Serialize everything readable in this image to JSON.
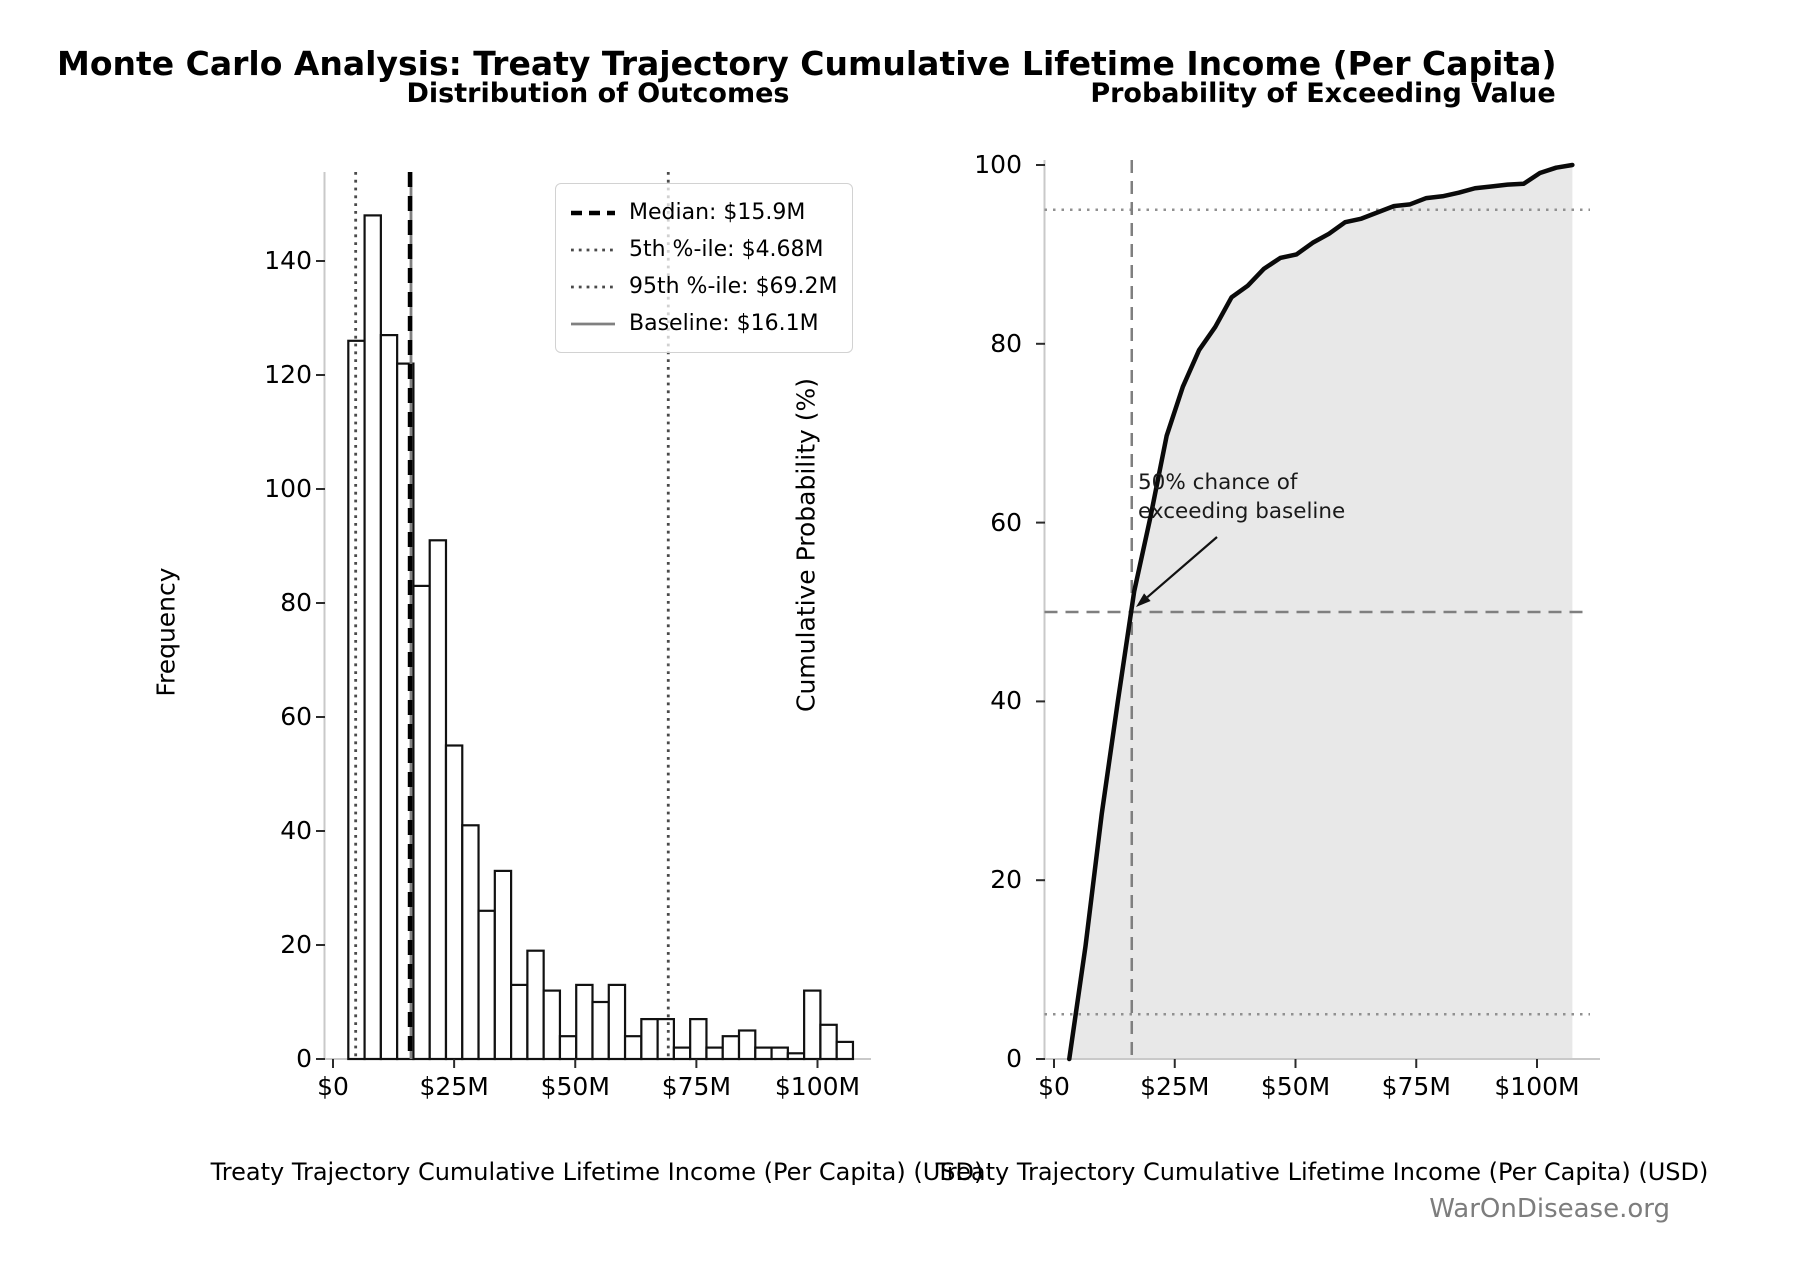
{
  "figure": {
    "title": "Monte Carlo Analysis: Treaty Trajectory Cumulative Lifetime Income (Per Capita)",
    "watermark": "WarOnDisease.org"
  },
  "chart_data": [
    {
      "type": "bar",
      "subplot": "left",
      "title": "Distribution of Outcomes",
      "xlabel": "Treaty Trajectory Cumulative Lifetime Income (Per Capita) (USD)",
      "ylabel": "Frequency",
      "n_samples": 1000,
      "bin_start_musd": 3.16,
      "bin_width_musd": 3.36,
      "counts": [
        126,
        148,
        127,
        122,
        83,
        91,
        55,
        41,
        26,
        33,
        13,
        19,
        12,
        4,
        13,
        10,
        13,
        4,
        7,
        7,
        2,
        7,
        2,
        4,
        5,
        2,
        2,
        1,
        12,
        6,
        3
      ],
      "xlim_musd": [
        0,
        110.8
      ],
      "ylim": [
        0,
        155.6
      ],
      "x_tick_values_musd": [
        0,
        25,
        50,
        75,
        100
      ],
      "x_tick_labels": [
        "$0",
        "$25M",
        "$50M",
        "$75M",
        "$100M"
      ],
      "y_tick_values": [
        0,
        20,
        40,
        60,
        80,
        100,
        120,
        140
      ],
      "y_tick_labels": [
        "0",
        "20",
        "40",
        "60",
        "80",
        "100",
        "120",
        "140"
      ],
      "ref_lines": {
        "median_musd": 15.9,
        "p5_musd": 4.68,
        "p95_musd": 69.2,
        "baseline_musd": 16.1
      },
      "legend": [
        {
          "label": "Median: $15.9M",
          "style": "dashed-black"
        },
        {
          "label": "5th %-ile: $4.68M",
          "style": "dotted-gray"
        },
        {
          "label": "95th %-ile: $69.2M",
          "style": "dotted-gray"
        },
        {
          "label": "Baseline: $16.1M",
          "style": "solid-gray"
        }
      ],
      "grid": false
    },
    {
      "type": "line",
      "subplot": "right",
      "title": "Probability of Exceeding Value",
      "xlabel": "Treaty Trajectory Cumulative Lifetime Income (Per Capita) (USD)",
      "ylabel": "Cumulative Probability (%)",
      "x_musd": [
        3.16,
        6.52,
        9.88,
        13.24,
        16.6,
        19.96,
        23.32,
        26.68,
        30.04,
        33.4,
        36.76,
        40.12,
        43.48,
        46.84,
        50.2,
        53.56,
        56.92,
        60.28,
        63.64,
        67.0,
        70.36,
        73.72,
        77.08,
        80.44,
        83.8,
        87.16,
        90.52,
        93.88,
        97.24,
        100.6,
        103.96,
        107.32
      ],
      "cumulative_percent": [
        0,
        12.6,
        27.4,
        40.1,
        52.3,
        60.6,
        69.7,
        75.2,
        79.3,
        81.9,
        85.2,
        86.5,
        88.4,
        89.6,
        90.0,
        91.3,
        92.3,
        93.6,
        94.0,
        94.7,
        95.4,
        95.6,
        96.3,
        96.5,
        96.9,
        97.4,
        97.6,
        97.8,
        97.9,
        99.1,
        99.7,
        100.0
      ],
      "xlim_musd": [
        0,
        113
      ],
      "ylim": [
        0,
        100
      ],
      "x_tick_values_musd": [
        0,
        25,
        50,
        75,
        100
      ],
      "x_tick_labels": [
        "$0",
        "$25M",
        "$50M",
        "$75M",
        "$100M"
      ],
      "y_tick_values": [
        0,
        20,
        40,
        60,
        80,
        100
      ],
      "y_tick_labels": [
        "0",
        "20",
        "40",
        "60",
        "80",
        "100"
      ],
      "ref_lines": {
        "h_dotted_percent": [
          5,
          95
        ],
        "h_dashed_percent": 50,
        "v_dashed_baseline_musd": 16.1
      },
      "fill_under_curve": true,
      "annotation": {
        "line1": "50% chance of",
        "line2": "exceeding baseline"
      },
      "colors": {
        "curve": "#0a0a0a",
        "fill": "#e8e8e8",
        "dashed_ref": "#7f7f7f",
        "dotted_ref": "#909090"
      },
      "grid": false
    }
  ]
}
